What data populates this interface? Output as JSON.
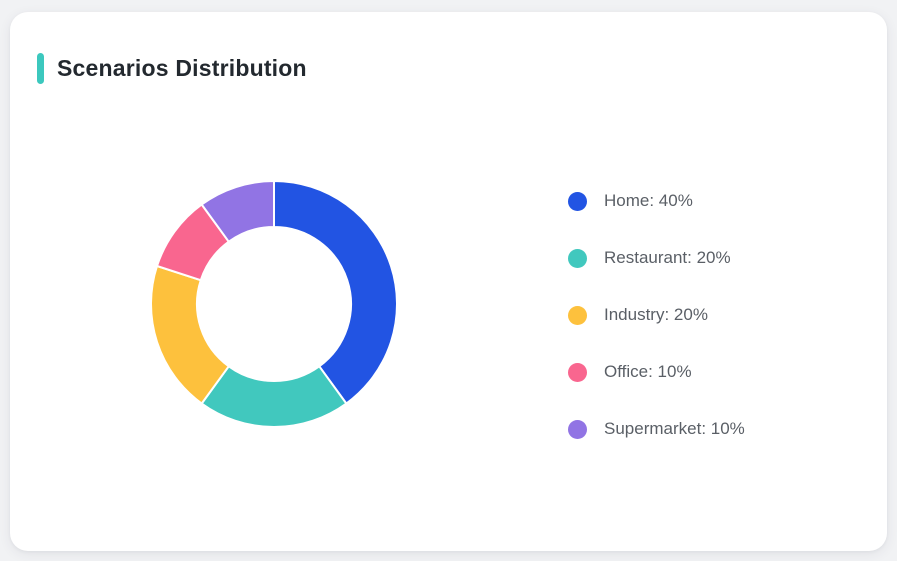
{
  "header": {
    "title": "Scenarios Distribution",
    "accent_color": "#3CC8BE"
  },
  "chart_data": {
    "type": "pie",
    "subtype": "donut",
    "title": "Scenarios Distribution",
    "categories": [
      "Home",
      "Restaurant",
      "Industry",
      "Office",
      "Supermarket"
    ],
    "values": [
      40,
      20,
      20,
      10,
      10
    ],
    "unit": "%",
    "colors": [
      "#2254E3",
      "#41C8BE",
      "#FDC13D",
      "#F9668F",
      "#9174E4"
    ],
    "start_angle_deg": 0,
    "direction": "clockwise",
    "inner_radius": 77,
    "outer_radius": 123,
    "segment_border_color": "#FFFFFF",
    "segment_border_width": 2,
    "legend_position": "right",
    "legend": [
      {
        "label": "Home: 40%"
      },
      {
        "label": "Restaurant: 20%"
      },
      {
        "label": "Industry: 20%"
      },
      {
        "label": "Office: 10%"
      },
      {
        "label": "Supermarket: 10%"
      }
    ]
  }
}
